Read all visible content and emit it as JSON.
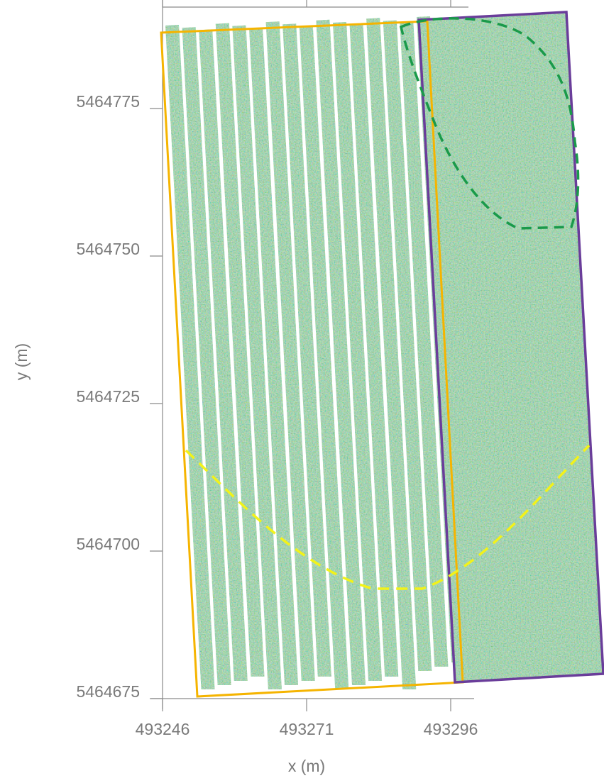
{
  "chart_data": {
    "type": "map",
    "x_label": "x (m)",
    "y_label": "y (m)",
    "xlim": [
      493246,
      493300
    ],
    "xticks": [
      493246,
      493271,
      493296
    ],
    "ylim": [
      5464675,
      5464793
    ],
    "yticks": [
      5464675,
      5464700,
      5464725,
      5464750,
      5464775
    ]
  }
}
